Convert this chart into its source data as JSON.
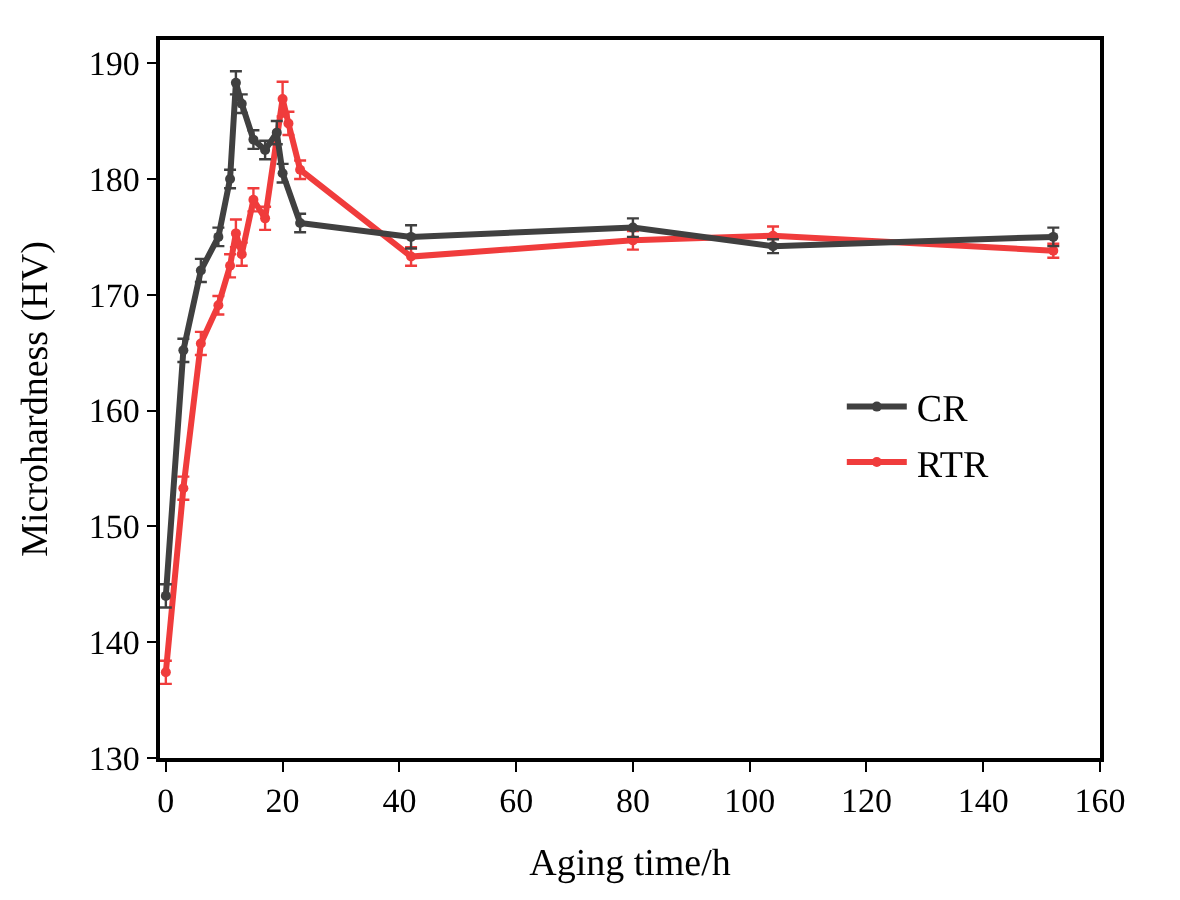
{
  "chart_data": {
    "type": "line",
    "xlabel": "Aging time/h",
    "ylabel": "Microhardness (HV)",
    "xlim": [
      -1,
      160
    ],
    "ylim": [
      130,
      192
    ],
    "xticks": [
      0,
      20,
      40,
      60,
      80,
      100,
      120,
      140,
      160
    ],
    "yticks": [
      130,
      140,
      150,
      160,
      170,
      180,
      190
    ],
    "legend": "right",
    "marker": "circle",
    "line_style": "solid",
    "series": [
      {
        "name": "CR",
        "color": "#404040",
        "x": [
          0,
          3,
          6,
          9,
          11,
          12,
          13,
          15,
          17,
          19,
          20,
          23,
          42,
          80,
          104,
          152
        ],
        "values": [
          144,
          165.2,
          172.1,
          175,
          180,
          188.3,
          186.5,
          183.4,
          182.5,
          184,
          180.5,
          176.2,
          175,
          175.8,
          174.2,
          175
        ],
        "errors": [
          1,
          1,
          1,
          0.8,
          0.8,
          1,
          0.8,
          0.8,
          0.8,
          1,
          0.8,
          0.8,
          1,
          0.8,
          0.6,
          0.8
        ]
      },
      {
        "name": "RTR",
        "color": "#f03c3c",
        "x": [
          0,
          3,
          6,
          9,
          11,
          12,
          13,
          15,
          17,
          20,
          21,
          23,
          42,
          80,
          104,
          152
        ],
        "values": [
          137.4,
          153.3,
          165.8,
          169.1,
          172.5,
          175.3,
          173.5,
          178.2,
          176.6,
          186.9,
          184.8,
          180.8,
          173.3,
          174.7,
          175.1,
          173.8
        ],
        "errors": [
          1,
          1,
          1,
          0.8,
          1,
          1.2,
          1,
          1,
          1,
          1.5,
          1,
          0.8,
          0.8,
          0.8,
          0.8,
          0.6
        ]
      }
    ]
  }
}
